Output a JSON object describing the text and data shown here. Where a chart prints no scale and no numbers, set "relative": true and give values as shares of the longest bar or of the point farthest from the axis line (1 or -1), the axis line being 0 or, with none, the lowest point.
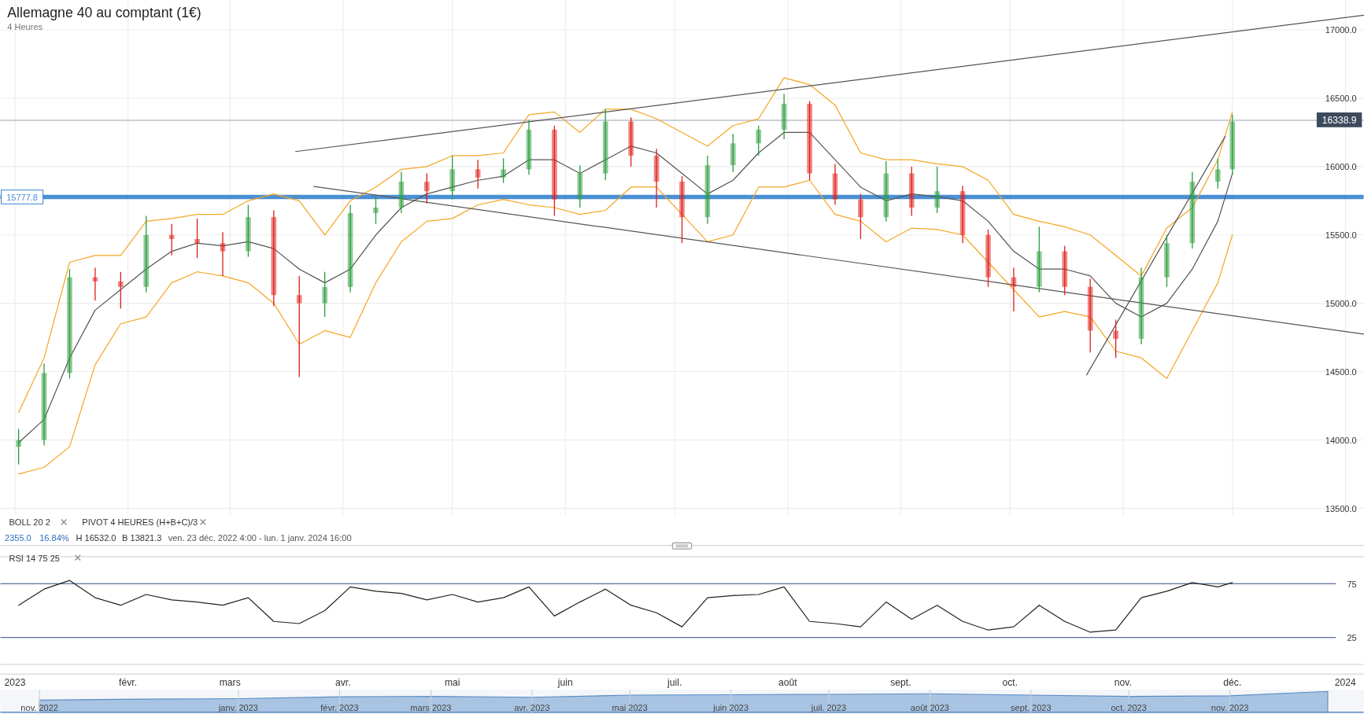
{
  "chart_data": [
    {
      "type": "candlestick",
      "title": "Allemagne 40 au comptant (1€)",
      "subtitle": "4 Heures",
      "annotations": [
        "BOLL 20 2",
        "PIVOT 4 HEURES (H+B+C)/3",
        "2355.0",
        "16.84%",
        "H 16532.0",
        "B 13821.3",
        "ven. 23 déc. 2022 4:00 - lun. 1 janv. 2024 16:00"
      ],
      "x": [
        "2023-01-02",
        "2023-01-09",
        "2023-01-16",
        "2023-01-23",
        "2023-01-30",
        "2023-02-06",
        "2023-02-13",
        "2023-02-20",
        "2023-02-27",
        "2023-03-06",
        "2023-03-13",
        "2023-03-20",
        "2023-03-27",
        "2023-04-03",
        "2023-04-10",
        "2023-04-17",
        "2023-04-24",
        "2023-05-01",
        "2023-05-08",
        "2023-05-15",
        "2023-05-22",
        "2023-05-29",
        "2023-06-05",
        "2023-06-12",
        "2023-06-19",
        "2023-06-26",
        "2023-07-03",
        "2023-07-10",
        "2023-07-17",
        "2023-07-24",
        "2023-07-31",
        "2023-08-07",
        "2023-08-14",
        "2023-08-21",
        "2023-08-28",
        "2023-09-04",
        "2023-09-11",
        "2023-09-18",
        "2023-09-25",
        "2023-10-02",
        "2023-10-09",
        "2023-10-16",
        "2023-10-23",
        "2023-10-30",
        "2023-11-06",
        "2023-11-13",
        "2023-11-20",
        "2023-11-27",
        "2023-12-01"
      ],
      "ohlc": [
        [
          13950,
          14080,
          13821,
          14000
        ],
        [
          14000,
          14560,
          13960,
          14490
        ],
        [
          14490,
          15250,
          14450,
          15190
        ],
        [
          15190,
          15260,
          15020,
          15160
        ],
        [
          15160,
          15230,
          14960,
          15120
        ],
        [
          15120,
          15640,
          15080,
          15500
        ],
        [
          15500,
          15580,
          15350,
          15470
        ],
        [
          15470,
          15620,
          15330,
          15440
        ],
        [
          15440,
          15520,
          15200,
          15380
        ],
        [
          15380,
          15720,
          15340,
          15630
        ],
        [
          15630,
          15680,
          14980,
          15060
        ],
        [
          15060,
          15200,
          14460,
          15000
        ],
        [
          15000,
          15230,
          14900,
          15120
        ],
        [
          15120,
          15720,
          15080,
          15660
        ],
        [
          15660,
          15780,
          15580,
          15700
        ],
        [
          15700,
          15960,
          15660,
          15890
        ],
        [
          15890,
          15950,
          15730,
          15820
        ],
        [
          15820,
          16080,
          15760,
          15980
        ],
        [
          15980,
          16050,
          15840,
          15920
        ],
        [
          15920,
          16060,
          15880,
          15980
        ],
        [
          15980,
          16340,
          15940,
          16270
        ],
        [
          16270,
          16300,
          15640,
          15760
        ],
        [
          15760,
          16010,
          15700,
          15950
        ],
        [
          15950,
          16420,
          15900,
          16330
        ],
        [
          16330,
          16360,
          16000,
          16080
        ],
        [
          16080,
          16130,
          15700,
          15890
        ],
        [
          15890,
          15930,
          15440,
          15630
        ],
        [
          15630,
          16080,
          15580,
          16010
        ],
        [
          16010,
          16240,
          15960,
          16170
        ],
        [
          16170,
          16300,
          16080,
          16270
        ],
        [
          16270,
          16532,
          16200,
          16460
        ],
        [
          16460,
          16480,
          15900,
          15950
        ],
        [
          15950,
          16020,
          15720,
          15760
        ],
        [
          15760,
          15800,
          15470,
          15630
        ],
        [
          15630,
          16040,
          15600,
          15950
        ],
        [
          15950,
          16000,
          15640,
          15700
        ],
        [
          15700,
          16000,
          15660,
          15820
        ],
        [
          15820,
          15860,
          15440,
          15500
        ],
        [
          15500,
          15540,
          15120,
          15190
        ],
        [
          15190,
          15260,
          14940,
          15120
        ],
        [
          15120,
          15560,
          15080,
          15380
        ],
        [
          15380,
          15420,
          15060,
          15120
        ],
        [
          15120,
          15180,
          14640,
          14800
        ],
        [
          14800,
          14880,
          14600,
          14740
        ],
        [
          14740,
          15260,
          14700,
          15190
        ],
        [
          15190,
          15500,
          15120,
          15440
        ],
        [
          15440,
          15960,
          15400,
          15890
        ],
        [
          15890,
          16060,
          15840,
          15980
        ],
        [
          15980,
          16380,
          15940,
          16330
        ]
      ],
      "colors": [
        "#2e9e3e",
        "#2e9e3e",
        "#2e9e3e",
        "#e0201b",
        "#e0201b",
        "#2e9e3e",
        "#e0201b",
        "#e0201b",
        "#e0201b",
        "#2e9e3e",
        "#e0201b",
        "#e0201b",
        "#2e9e3e",
        "#2e9e3e",
        "#2e9e3e",
        "#2e9e3e",
        "#e0201b",
        "#2e9e3e",
        "#e0201b",
        "#2e9e3e",
        "#2e9e3e",
        "#e0201b",
        "#2e9e3e",
        "#2e9e3e",
        "#e0201b",
        "#e0201b",
        "#e0201b",
        "#2e9e3e",
        "#2e9e3e",
        "#2e9e3e",
        "#2e9e3e",
        "#e0201b",
        "#e0201b",
        "#e0201b",
        "#2e9e3e",
        "#e0201b",
        "#2e9e3e",
        "#e0201b",
        "#e0201b",
        "#e0201b",
        "#2e9e3e",
        "#e0201b",
        "#e0201b",
        "#e0201b",
        "#2e9e3e",
        "#2e9e3e",
        "#2e9e3e",
        "#2e9e3e",
        "#2e9e3e"
      ],
      "series": [
        {
          "type": "line",
          "color": "#f5a623",
          "values": [
            14200,
            14600,
            15300,
            15350,
            15350,
            15600,
            15620,
            15650,
            15650,
            15750,
            15800,
            15750,
            15500,
            15750,
            15850,
            15980,
            16000,
            16080,
            16080,
            16100,
            16380,
            16400,
            16250,
            16420,
            16420,
            16350,
            16250,
            16150,
            16300,
            16350,
            16650,
            16600,
            16450,
            16100,
            16050,
            16050,
            16020,
            16000,
            15900,
            15650,
            15600,
            15560,
            15500,
            15350,
            15200,
            15550,
            15700,
            16050,
            16400
          ]
        },
        {
          "type": "line",
          "color": "#555555",
          "values": [
            13980,
            14150,
            14600,
            14950,
            15100,
            15250,
            15380,
            15440,
            15420,
            15450,
            15400,
            15250,
            15150,
            15250,
            15500,
            15700,
            15800,
            15850,
            15900,
            15930,
            16050,
            16050,
            15950,
            16050,
            16150,
            16100,
            15950,
            15800,
            15900,
            16100,
            16250,
            16250,
            16050,
            15850,
            15750,
            15800,
            15780,
            15750,
            15600,
            15380,
            15250,
            15250,
            15200,
            15000,
            14900,
            15000,
            15250,
            15600,
            15950
          ]
        },
        {
          "type": "line",
          "color": "#f5a623",
          "values": [
            13750,
            13800,
            13950,
            14550,
            14850,
            14900,
            15150,
            15230,
            15200,
            15150,
            15000,
            14700,
            14800,
            14750,
            15150,
            15450,
            15600,
            15620,
            15720,
            15760,
            15720,
            15700,
            15650,
            15680,
            15850,
            15850,
            15650,
            15450,
            15500,
            15850,
            15850,
            15900,
            15650,
            15600,
            15450,
            15550,
            15540,
            15500,
            15300,
            15100,
            14900,
            14940,
            14900,
            14650,
            14600,
            14450,
            14800,
            15150,
            15500
          ]
        },
        {
          "type": "line",
          "color": "#555555",
          "x": [
            "2023-03-19",
            "2024-01-06"
          ],
          "values": [
            16110,
            17108
          ]
        },
        {
          "type": "line",
          "color": "#555555",
          "x": [
            "2023-03-24",
            "2024-01-06"
          ],
          "values": [
            15855,
            14774
          ]
        },
        {
          "type": "line",
          "color": "#555555",
          "x": [
            "2023-10-22",
            "2023-11-29"
          ],
          "values": [
            14475,
            16220
          ]
        }
      ],
      "xlim": [
        "2022-12-28",
        "2024-01-06"
      ],
      "ylim": [
        13450,
        17200
      ],
      "xticks": [
        {
          "value": "2023-01-01",
          "label": null
        },
        {
          "value": "2023-02-01",
          "label": null
        },
        {
          "value": "2023-03-01",
          "label": null
        },
        {
          "value": "2023-04-01",
          "label": null
        },
        {
          "value": "2023-05-01",
          "label": null
        },
        {
          "value": "2023-06-01",
          "label": null
        },
        {
          "value": "2023-07-01",
          "label": null
        },
        {
          "value": "2023-08-01",
          "label": null
        },
        {
          "value": "2023-09-01",
          "label": null
        },
        {
          "value": "2023-10-01",
          "label": null
        },
        {
          "value": "2023-11-01",
          "label": null
        },
        {
          "value": "2023-12-01",
          "label": null
        },
        {
          "value": "2024-01-01",
          "label": null
        }
      ],
      "yticks": [
        {
          "value": 13500,
          "label": "13500.0"
        },
        {
          "value": 14000,
          "label": "14000.0"
        },
        {
          "value": 14500,
          "label": "14500.0"
        },
        {
          "value": 15000,
          "label": "15000.0"
        },
        {
          "value": 15500,
          "label": "15500.0"
        },
        {
          "value": 16000,
          "label": "16000.0"
        },
        {
          "value": 16500,
          "label": "16500.0"
        },
        {
          "value": 17000,
          "label": "17000.0"
        }
      ],
      "ref_lines": [
        {
          "axis": "y",
          "value": 16338.9,
          "label": "16338.9",
          "color": "#9aa0b0"
        },
        {
          "axis": "y",
          "value": 15777.8,
          "label": "15777.8",
          "color": "#4a8fd4"
        }
      ],
      "grid": true,
      "tick_labels": "y"
    },
    {
      "type": "line",
      "title": "RSI 14 75 25",
      "x": [
        "2023-01-02",
        "2023-01-09",
        "2023-01-16",
        "2023-01-23",
        "2023-01-30",
        "2023-02-06",
        "2023-02-13",
        "2023-02-20",
        "2023-02-27",
        "2023-03-06",
        "2023-03-13",
        "2023-03-20",
        "2023-03-27",
        "2023-04-03",
        "2023-04-10",
        "2023-04-17",
        "2023-04-24",
        "2023-05-01",
        "2023-05-08",
        "2023-05-15",
        "2023-05-22",
        "2023-05-29",
        "2023-06-05",
        "2023-06-12",
        "2023-06-19",
        "2023-06-26",
        "2023-07-03",
        "2023-07-10",
        "2023-07-17",
        "2023-07-24",
        "2023-07-31",
        "2023-08-07",
        "2023-08-14",
        "2023-08-21",
        "2023-08-28",
        "2023-09-04",
        "2023-09-11",
        "2023-09-18",
        "2023-09-25",
        "2023-10-02",
        "2023-10-09",
        "2023-10-16",
        "2023-10-23",
        "2023-10-30",
        "2023-11-06",
        "2023-11-13",
        "2023-11-20",
        "2023-11-27",
        "2023-12-01"
      ],
      "series": [
        {
          "color": "#222222",
          "values": [
            55,
            70,
            78,
            62,
            55,
            65,
            60,
            58,
            55,
            62,
            40,
            38,
            50,
            72,
            68,
            66,
            60,
            65,
            58,
            62,
            72,
            45,
            58,
            70,
            55,
            48,
            35,
            62,
            64,
            65,
            72,
            40,
            38,
            35,
            58,
            42,
            55,
            40,
            32,
            35,
            55,
            40,
            30,
            32,
            62,
            68,
            76,
            72,
            76
          ]
        }
      ],
      "xlim": [
        "2022-12-28",
        "2024-01-06"
      ],
      "ylim": [
        0,
        100
      ],
      "yticks": [
        25,
        75
      ],
      "xticks": [
        {
          "value": "2023-01-01",
          "label": "2023"
        },
        {
          "value": "2023-02-01",
          "label": "févr."
        },
        {
          "value": "2023-03-01",
          "label": "mars"
        },
        {
          "value": "2023-04-01",
          "label": "avr."
        },
        {
          "value": "2023-05-01",
          "label": "mai"
        },
        {
          "value": "2023-06-01",
          "label": "juin"
        },
        {
          "value": "2023-07-01",
          "label": "juil."
        },
        {
          "value": "2023-08-01",
          "label": "août"
        },
        {
          "value": "2023-09-01",
          "label": "sept."
        },
        {
          "value": "2023-10-01",
          "label": "oct."
        },
        {
          "value": "2023-11-01",
          "label": "nov."
        },
        {
          "value": "2023-12-01",
          "label": "déc."
        },
        {
          "value": "2024-01-01",
          "label": "2024"
        }
      ],
      "ref_lines": [
        {
          "axis": "y",
          "value": 75,
          "color": "#2b4a80"
        },
        {
          "axis": "y",
          "value": 25,
          "color": "#2b4a80"
        }
      ]
    },
    {
      "type": "area",
      "relative": true,
      "color": "#a9c4e2",
      "x": [
        "2022-11-01",
        "2022-12-01",
        "2023-01-01",
        "2023-02-01",
        "2023-03-01",
        "2023-04-01",
        "2023-05-01",
        "2023-06-01",
        "2023-07-01",
        "2023-08-01",
        "2023-09-01",
        "2023-10-01",
        "2023-11-01",
        "2023-12-01"
      ],
      "values": [
        0.58,
        0.63,
        0.65,
        0.74,
        0.76,
        0.72,
        0.82,
        0.84,
        0.86,
        0.89,
        0.82,
        0.76,
        0.79,
        1
      ],
      "xlim": [
        "2022-10-20",
        "2023-12-12"
      ],
      "xticks": [
        {
          "value": "2022-11-01",
          "label": "nov. 2022"
        },
        {
          "value": "2023-01-01",
          "label": "janv. 2023"
        },
        {
          "value": "2023-02-01",
          "label": "févr. 2023"
        },
        {
          "value": "2023-03-01",
          "label": "mars 2023"
        },
        {
          "value": "2023-04-01",
          "label": "avr. 2023"
        },
        {
          "value": "2023-05-01",
          "label": "mai 2023"
        },
        {
          "value": "2023-06-01",
          "label": "juin 2023"
        },
        {
          "value": "2023-07-01",
          "label": "juil. 2023"
        },
        {
          "value": "2023-08-01",
          "label": "août 2023"
        },
        {
          "value": "2023-09-01",
          "label": "sept. 2023"
        },
        {
          "value": "2023-10-01",
          "label": "oct. 2023"
        },
        {
          "value": "2023-11-01",
          "label": "nov. 2023"
        }
      ],
      "grid": "x",
      "tick_labels": "x"
    }
  ]
}
